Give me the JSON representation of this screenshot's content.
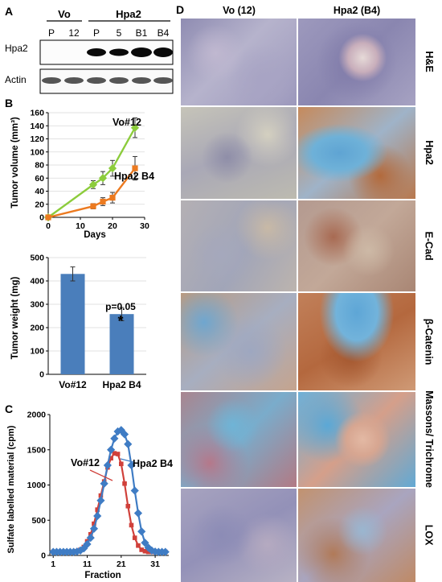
{
  "panels": {
    "A": "A",
    "B": "B",
    "C": "C",
    "D": "D"
  },
  "blot": {
    "group_vo": "Vo",
    "group_hpa2": "Hpa2",
    "lanes": [
      "P",
      "12",
      "P",
      "5",
      "B1",
      "B4"
    ],
    "rows": [
      "Hpa2",
      "Actin"
    ]
  },
  "chart_data": [
    {
      "type": "line",
      "xlabel": "Days",
      "ylabel": "Tumor volume (mm³)",
      "x_ticks": [
        0,
        10,
        20,
        30
      ],
      "y_ticks": [
        0,
        20,
        40,
        60,
        80,
        100,
        120,
        140,
        160
      ],
      "xlim": [
        0,
        30
      ],
      "ylim": [
        0,
        160
      ],
      "series": [
        {
          "name": "Vo#12",
          "color": "#8ccc3c",
          "x": [
            0,
            14,
            17,
            20,
            27
          ],
          "y": [
            0,
            50,
            60,
            75,
            137
          ],
          "err": [
            0,
            6,
            10,
            12,
            15
          ]
        },
        {
          "name": "Hpa2 B4",
          "color": "#ec7a20",
          "x": [
            0,
            14,
            17,
            20,
            27
          ],
          "y": [
            0,
            17,
            24,
            30,
            75
          ],
          "err": [
            0,
            4,
            6,
            8,
            18
          ]
        }
      ]
    },
    {
      "type": "bar",
      "ylabel": "Tumor weight (mg)",
      "categories": [
        "Vo#12",
        "Hpa2 B4"
      ],
      "values": [
        430,
        258
      ],
      "err": [
        30,
        28
      ],
      "y_ticks": [
        0,
        100,
        200,
        300,
        400,
        500
      ],
      "ylim": [
        0,
        500
      ],
      "color": "#4a7ebb",
      "annotation": "p=0.05",
      "significance": "*"
    },
    {
      "type": "line",
      "xlabel": "Fraction",
      "ylabel": "Sulfate labelled material (cpm)",
      "x_ticks": [
        1,
        11,
        21,
        31
      ],
      "y_ticks": [
        0,
        500,
        1000,
        1500,
        2000
      ],
      "xlim": [
        0,
        35
      ],
      "ylim": [
        0,
        2000
      ],
      "series": [
        {
          "name": "Vo#12",
          "color": "#d0403a",
          "marker": "square",
          "x": [
            1,
            2,
            3,
            4,
            5,
            6,
            7,
            8,
            9,
            10,
            11,
            12,
            13,
            14,
            15,
            16,
            17,
            18,
            19,
            20,
            21,
            22,
            23,
            24,
            25,
            26,
            27,
            28,
            29,
            30,
            31,
            32,
            33,
            34
          ],
          "y": [
            50,
            50,
            50,
            50,
            50,
            50,
            50,
            60,
            80,
            120,
            200,
            300,
            450,
            650,
            850,
            1050,
            1250,
            1380,
            1450,
            1440,
            1300,
            1020,
            700,
            430,
            250,
            140,
            80,
            60,
            50,
            50,
            50,
            50,
            50,
            50
          ]
        },
        {
          "name": "Hpa2 B4",
          "color": "#3f7cc4",
          "marker": "diamond",
          "x": [
            1,
            2,
            3,
            4,
            5,
            6,
            7,
            8,
            9,
            10,
            11,
            12,
            13,
            14,
            15,
            16,
            17,
            18,
            19,
            20,
            21,
            22,
            23,
            24,
            25,
            26,
            27,
            28,
            29,
            30,
            31,
            32,
            33,
            34
          ],
          "y": [
            50,
            50,
            50,
            50,
            50,
            50,
            50,
            55,
            70,
            100,
            160,
            250,
            380,
            560,
            780,
            1020,
            1280,
            1500,
            1660,
            1760,
            1780,
            1720,
            1580,
            1280,
            920,
            600,
            340,
            180,
            110,
            70,
            55,
            50,
            50,
            50
          ]
        }
      ]
    }
  ],
  "histology": {
    "col_headers": [
      "Vo (12)",
      "Hpa2 (B4)"
    ],
    "rows": [
      "H&E",
      "Hpa2",
      "E-Cad",
      "β-Catenin",
      "Massons/ Trichrome",
      "LOX"
    ]
  }
}
